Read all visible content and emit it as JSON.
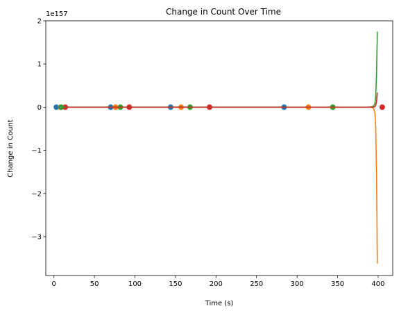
{
  "chart_data": {
    "type": "line",
    "title": "Change in Count Over Time",
    "xlabel": "Time (s)",
    "ylabel": "Change in Count",
    "y_offset_label": "1e157",
    "y_scale": 1e+157,
    "xlim": [
      -10,
      418
    ],
    "ylim": [
      -3.9e+157,
      2e+157
    ],
    "x_ticks": [
      0,
      50,
      100,
      150,
      200,
      250,
      300,
      350,
      400
    ],
    "x_tick_labels": [
      "0",
      "50",
      "100",
      "150",
      "200",
      "250",
      "300",
      "350",
      "400"
    ],
    "y_ticks": [
      -3e+157,
      -2e+157,
      -1e+157,
      0,
      1e+157,
      2e+157
    ],
    "y_tick_labels": [
      "−3",
      "−2",
      "−1",
      "0",
      "1",
      "2"
    ],
    "grid": false,
    "legend": "none",
    "series": [
      {
        "color": "#1f77b4",
        "points_x": [
          3,
          70,
          144,
          284
        ],
        "points_y": [
          0,
          0,
          0,
          0
        ],
        "line_x": [
          3,
          70,
          144,
          284
        ],
        "line_y": [
          0,
          0,
          0,
          0
        ]
      },
      {
        "color": "#ff7f0e",
        "points_x": [
          8,
          76,
          157,
          314
        ],
        "points_y": [
          0,
          0,
          0,
          0
        ],
        "line_x": [
          8,
          200,
          380,
          390,
          394,
          396,
          397,
          398,
          399
        ],
        "line_y": [
          0,
          0,
          0,
          0,
          -2e+155,
          -1.2e+156,
          -4.5e+156,
          -1.5e+157,
          -3.62e+157
        ]
      },
      {
        "color": "#2ca02c",
        "points_x": [
          9,
          82,
          168,
          344
        ],
        "points_y": [
          0,
          0,
          0,
          0
        ],
        "line_x": [
          9,
          200,
          380,
          390,
          394,
          396,
          397,
          398,
          399
        ],
        "line_y": [
          0,
          0,
          0,
          0,
          2e+155,
          8e+155,
          2.5e+156,
          7.5e+156,
          1.75e+157
        ]
      },
      {
        "color": "#d62728",
        "points_x": [
          14,
          93,
          192,
          405
        ],
        "points_y": [
          0,
          0,
          0,
          0
        ],
        "line_x": [
          14,
          200,
          385,
          393,
          396,
          397,
          398,
          399
        ],
        "line_y": [
          0,
          0,
          0,
          0,
          1e+155,
          4e+155,
          1.2e+156,
          3.4e+156
        ]
      }
    ]
  }
}
